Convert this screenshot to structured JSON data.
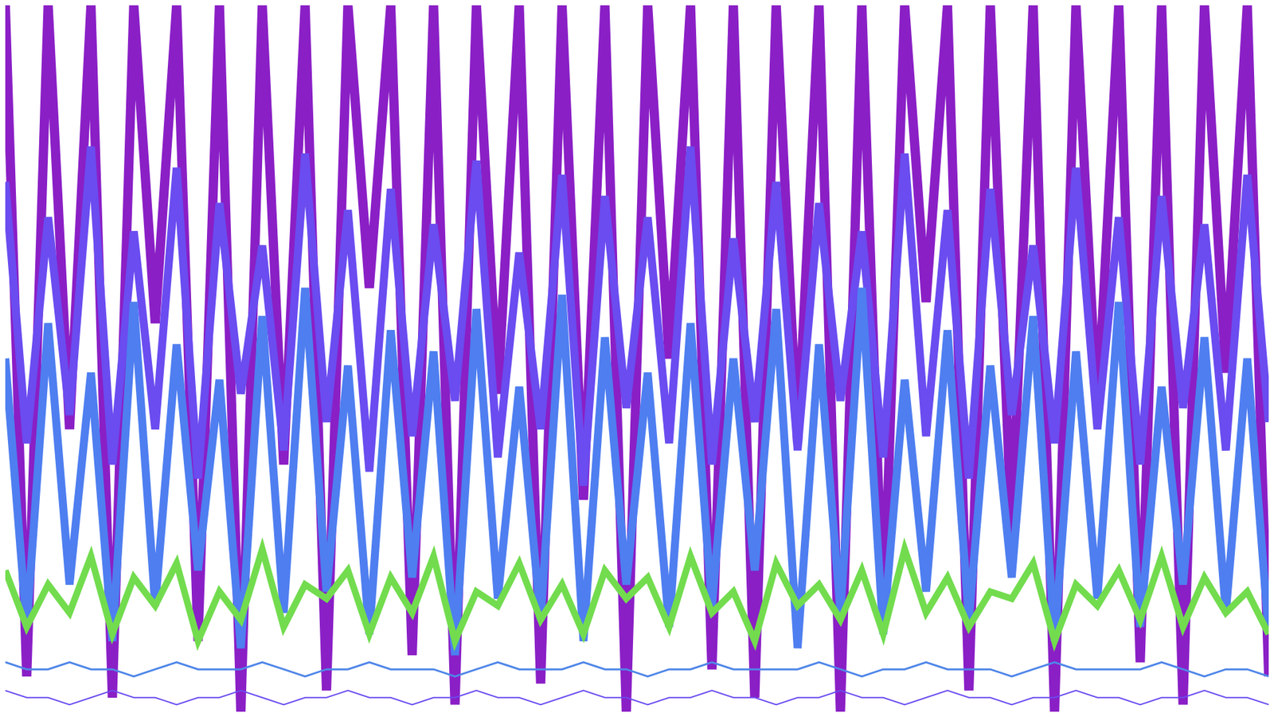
{
  "chart_data": {
    "type": "line",
    "grid": false,
    "tick_labels": false,
    "xlim": [
      0,
      59
    ],
    "ylim": [
      0,
      100
    ],
    "x": [
      0,
      1,
      2,
      3,
      4,
      5,
      6,
      7,
      8,
      9,
      10,
      11,
      12,
      13,
      14,
      15,
      16,
      17,
      18,
      19,
      20,
      21,
      22,
      23,
      24,
      25,
      26,
      27,
      28,
      29,
      30,
      31,
      32,
      33,
      34,
      35,
      36,
      37,
      38,
      39,
      40,
      41,
      42,
      43,
      44,
      45,
      46,
      47,
      48,
      49,
      50,
      51,
      52,
      53,
      54,
      55,
      56,
      57,
      58,
      59
    ],
    "series": [
      {
        "color": "#8a1fc6",
        "values": [
          100,
          5,
          100,
          40,
          100,
          2,
          100,
          55,
          100,
          10,
          100,
          0,
          100,
          35,
          100,
          3,
          100,
          60,
          100,
          8,
          100,
          1,
          100,
          45,
          100,
          4,
          100,
          30,
          100,
          0,
          100,
          50,
          100,
          6,
          100,
          2,
          100,
          38,
          100,
          0,
          100,
          12,
          100,
          58,
          100,
          3,
          100,
          25,
          100,
          0,
          100,
          42,
          100,
          7,
          100,
          1,
          100,
          48,
          100,
          5
        ]
      },
      {
        "color": "#6a4cf0",
        "values": [
          75,
          38,
          70,
          42,
          80,
          35,
          68,
          40,
          77,
          33,
          72,
          45,
          66,
          37,
          79,
          41,
          71,
          34,
          74,
          39,
          69,
          44,
          78,
          36,
          65,
          40,
          76,
          32,
          73,
          43,
          70,
          38,
          80,
          35,
          67,
          41,
          75,
          37,
          72,
          44,
          68,
          36,
          79,
          39,
          71,
          33,
          74,
          42,
          66,
          38,
          77,
          40,
          70,
          35,
          73,
          43,
          69,
          37,
          76,
          41
        ]
      },
      {
        "color": "#4e7ef0",
        "values": [
          50,
          12,
          55,
          18,
          48,
          10,
          58,
          15,
          52,
          20,
          47,
          9,
          56,
          14,
          60,
          17,
          49,
          11,
          54,
          19,
          51,
          8,
          57,
          16,
          46,
          13,
          59,
          10,
          53,
          18,
          48,
          12,
          55,
          15,
          50,
          20,
          57,
          9,
          52,
          14,
          60,
          11,
          47,
          17,
          54,
          13,
          49,
          19,
          56,
          10,
          51,
          16,
          58,
          12,
          46,
          18,
          53,
          14,
          50,
          11
        ]
      },
      {
        "color": "#72dc4e",
        "values": [
          20,
          12,
          18,
          14,
          22,
          11,
          19,
          15,
          21,
          10,
          17,
          13,
          23,
          12,
          18,
          16,
          20,
          11,
          19,
          14,
          22,
          10,
          17,
          15,
          21,
          13,
          18,
          11,
          20,
          16,
          19,
          12,
          22,
          14,
          17,
          10,
          21,
          15,
          18,
          13,
          20,
          11,
          23,
          14,
          19,
          12,
          17,
          16,
          21,
          10,
          18,
          15,
          20,
          13,
          22,
          12,
          19,
          14,
          17,
          11
        ]
      },
      {
        "color": "#4f86e8",
        "values": [
          7,
          6,
          6,
          7,
          6,
          6,
          5,
          6,
          7,
          6,
          6,
          6,
          7,
          6,
          5,
          6,
          6,
          7,
          6,
          6,
          6,
          5,
          6,
          7,
          6,
          6,
          6,
          7,
          6,
          6,
          5,
          6,
          6,
          7,
          6,
          6,
          6,
          6,
          7,
          6,
          5,
          6,
          6,
          7,
          6,
          6,
          6,
          5,
          6,
          7,
          6,
          6,
          6,
          6,
          7,
          6,
          5,
          6,
          6,
          5
        ]
      },
      {
        "color": "#6a4cf0",
        "values": [
          3,
          2,
          2,
          1,
          2,
          3,
          2,
          2,
          1,
          2,
          2,
          3,
          2,
          1,
          2,
          2,
          3,
          2,
          2,
          1,
          2,
          2,
          3,
          2,
          2,
          1,
          2,
          3,
          2,
          2,
          1,
          2,
          2,
          3,
          2,
          2,
          1,
          2,
          2,
          3,
          2,
          2,
          1,
          2,
          3,
          2,
          2,
          1,
          2,
          2,
          3,
          2,
          2,
          1,
          2,
          2,
          3,
          2,
          2,
          1
        ]
      }
    ]
  }
}
